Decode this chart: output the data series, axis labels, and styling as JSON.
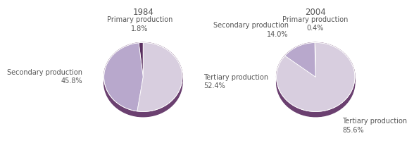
{
  "chart1": {
    "title": "1984",
    "values": [
      1.8,
      45.8,
      52.4
    ],
    "labels": [
      "Primary production\n1.8%",
      "Secondary production\n45.8%",
      "Tertiary production\n52.4%"
    ],
    "colors": [
      "#5a3060",
      "#b8a8cc",
      "#d8cedf"
    ],
    "startangle": 90
  },
  "chart2": {
    "title": "2004",
    "values": [
      0.4,
      14.0,
      85.6
    ],
    "labels": [
      "Primary production\n0.4%",
      "Secondary production\n14.0%",
      "Tertiary production\n85.6%"
    ],
    "colors": [
      "#5a3060",
      "#b8a8cc",
      "#d8cedf"
    ],
    "startangle": 90
  },
  "rim_color": "#6b4070",
  "background_color": "#ffffff",
  "text_color": "#555555",
  "title_fontsize": 8.5,
  "label_fontsize": 7.0
}
